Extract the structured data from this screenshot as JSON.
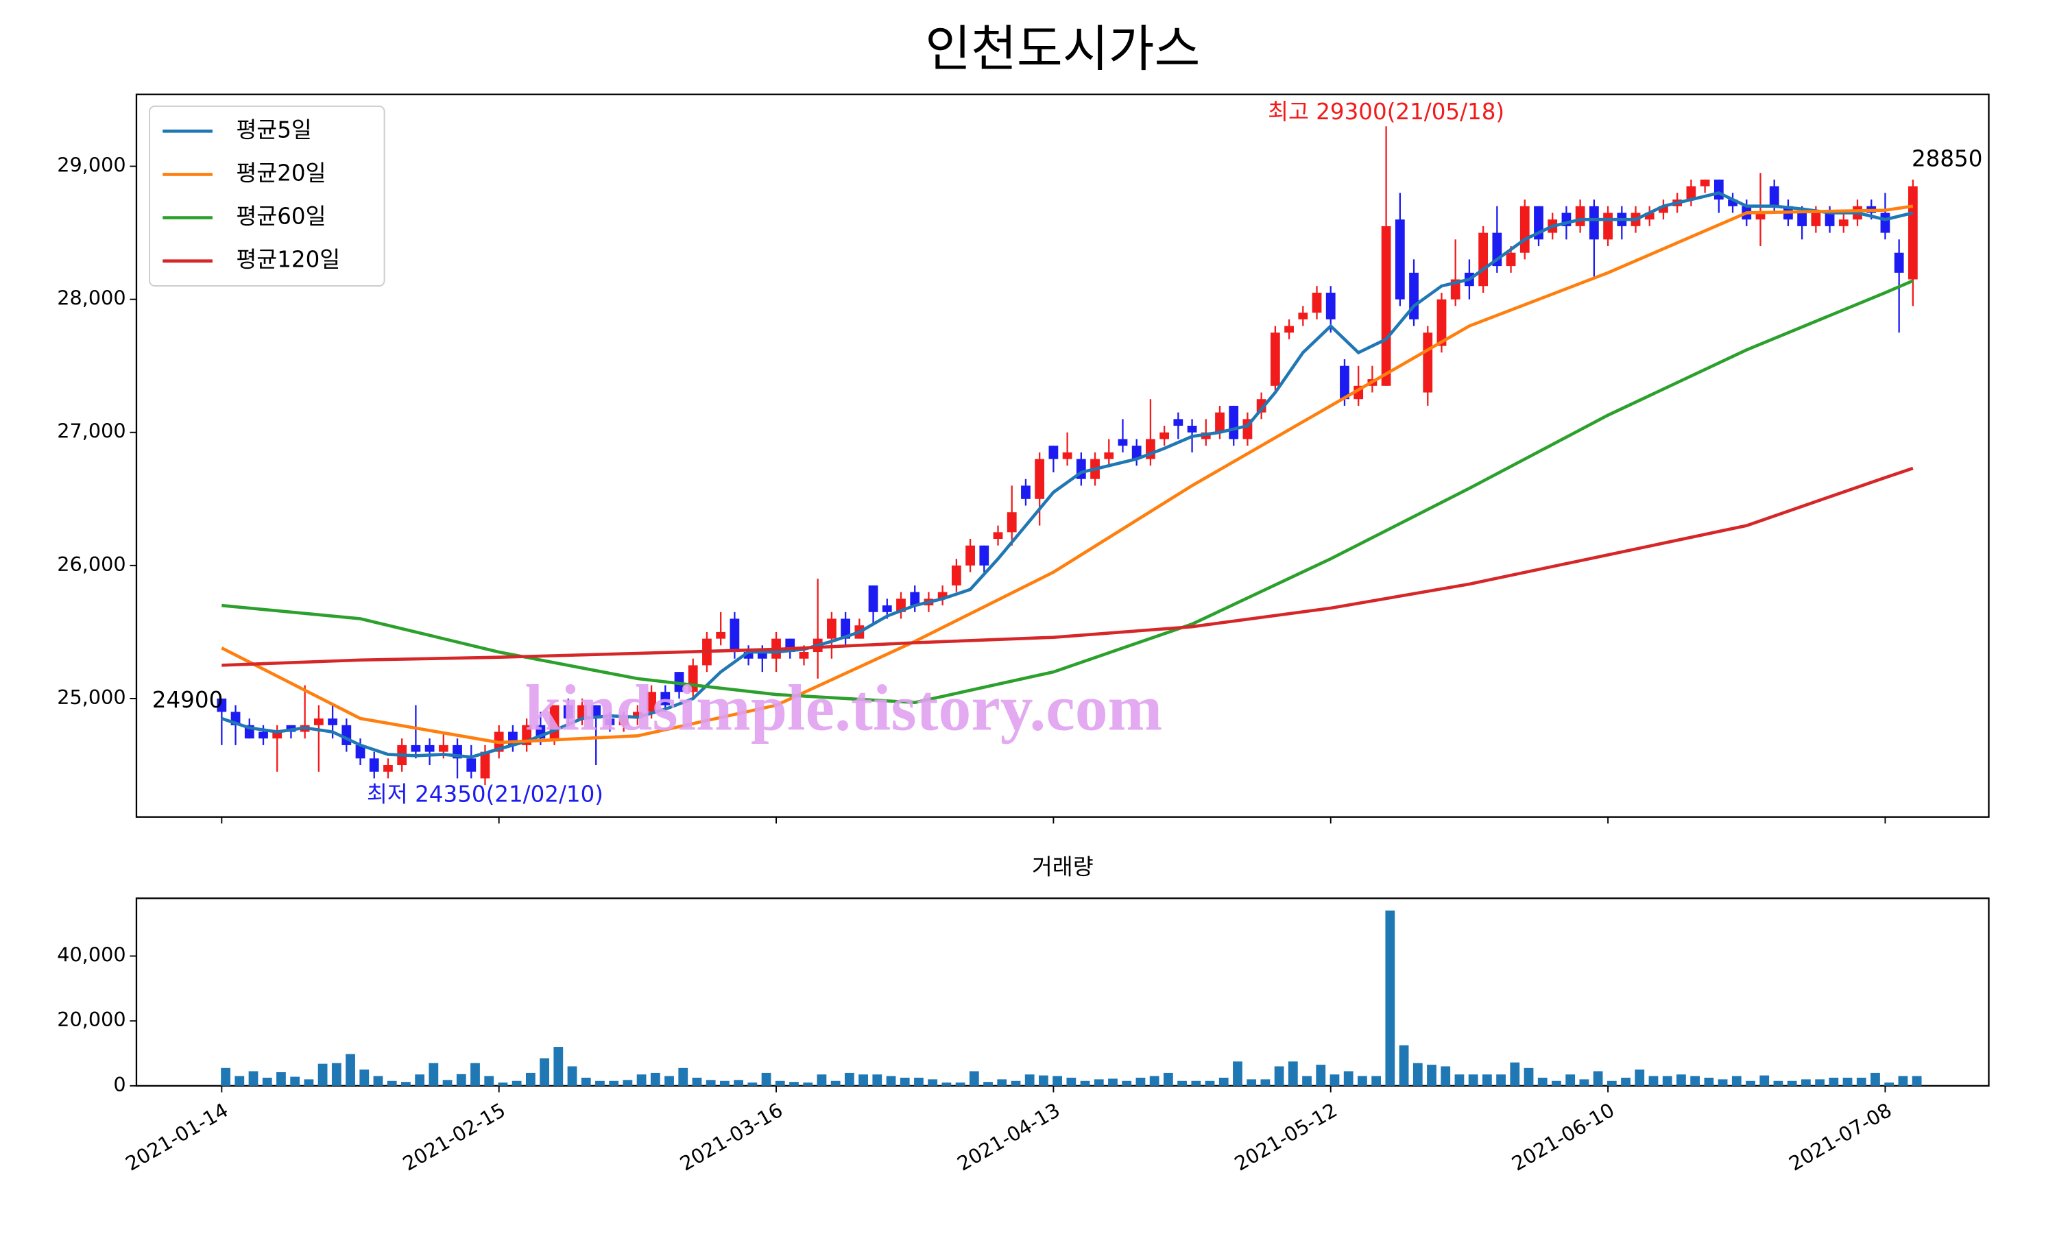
{
  "chart_data": [
    {
      "type": "candlestick",
      "title": "인천도시가스",
      "up_color": "#f21b1b",
      "down_color": "#1b1bf2",
      "legend": "upper left",
      "ylim": [
        24110,
        29540
      ],
      "yticks": [
        {
          "value": 25000,
          "label": "25,000"
        },
        {
          "value": 26000,
          "label": "26,000"
        },
        {
          "value": 27000,
          "label": "27,000"
        },
        {
          "value": 28000,
          "label": "28,000"
        },
        {
          "value": 29000,
          "label": "29,000"
        }
      ],
      "max_label": "최고 29300(21/05/18)",
      "min_label": "최저 24350(21/02/10)",
      "first_label": "24900",
      "last_label": "28850",
      "watermark": "kindsimple.tistory.com",
      "open": [
        25000,
        24900,
        24800,
        24750,
        24700,
        24800,
        24750,
        24800,
        24850,
        24800,
        24650,
        24550,
        24450,
        24500,
        24650,
        24650,
        24600,
        24650,
        24550,
        24400,
        24600,
        24750,
        24650,
        24800,
        24700,
        24950,
        24850,
        24950,
        24850,
        24800,
        24850,
        24900,
        25050,
        25200,
        25050,
        25250,
        25450,
        25600,
        25350,
        25350,
        25300,
        25450,
        25300,
        25350,
        25450,
        25600,
        25450,
        25850,
        25700,
        25650,
        25800,
        25700,
        25750,
        25850,
        26000,
        26150,
        26200,
        26250,
        26600,
        26500,
        26900,
        26800,
        26800,
        26650,
        26800,
        26950,
        26900,
        26800,
        26950,
        27100,
        27050,
        26950,
        27000,
        27200,
        26950,
        27150,
        27350,
        27750,
        27850,
        27900,
        28050,
        27500,
        27250,
        27350,
        27350,
        28600,
        28200,
        27300,
        27650,
        28000,
        28200,
        28100,
        28500,
        28250,
        28350,
        28700,
        28500,
        28650,
        28550,
        28700,
        28450,
        28650,
        28550,
        28600,
        28650,
        28700,
        28750,
        28850,
        28900,
        28750,
        28700,
        28600,
        28850,
        28700,
        28650,
        28550,
        28650,
        28550,
        28600,
        28700,
        28650,
        28350,
        28150
      ],
      "high": [
        25000,
        24950,
        24850,
        24800,
        24800,
        24800,
        25100,
        24950,
        24950,
        24850,
        24700,
        24600,
        24550,
        24700,
        24950,
        24700,
        24750,
        24700,
        24650,
        24650,
        24800,
        24800,
        24850,
        24900,
        24950,
        25000,
        25000,
        24950,
        24900,
        24900,
        24950,
        25100,
        25100,
        25200,
        25300,
        25500,
        25650,
        25650,
        25400,
        25400,
        25500,
        25450,
        25400,
        25900,
        25650,
        25650,
        25600,
        25850,
        25750,
        25800,
        25850,
        25800,
        25850,
        26050,
        26200,
        26150,
        26300,
        26600,
        26650,
        26850,
        26900,
        27000,
        26850,
        26850,
        26950,
        27100,
        26950,
        27250,
        27050,
        27150,
        27100,
        27100,
        27200,
        27200,
        27150,
        27300,
        27800,
        27850,
        27950,
        28100,
        28100,
        27550,
        27500,
        27500,
        29300,
        28800,
        28300,
        27800,
        28050,
        28450,
        28300,
        28550,
        28700,
        28400,
        28750,
        28700,
        28650,
        28700,
        28750,
        28750,
        28700,
        28700,
        28700,
        28700,
        28750,
        28800,
        28900,
        28900,
        28900,
        28800,
        28750,
        28950,
        28900,
        28750,
        28700,
        28700,
        28700,
        28650,
        28750,
        28750,
        28800,
        28450,
        28900
      ],
      "low": [
        24650,
        24650,
        24700,
        24650,
        24450,
        24700,
        24700,
        24450,
        24700,
        24600,
        24500,
        24400,
        24400,
        24450,
        24550,
        24500,
        24550,
        24400,
        24400,
        24350,
        24550,
        24600,
        24600,
        24650,
        24650,
        24800,
        24800,
        24500,
        24750,
        24750,
        24800,
        24850,
        24900,
        25000,
        25000,
        25200,
        25400,
        25300,
        25250,
        25200,
        25200,
        25300,
        25250,
        25150,
        25300,
        25400,
        25450,
        25550,
        25600,
        25600,
        25650,
        25650,
        25700,
        25800,
        25950,
        25950,
        26150,
        26150,
        26450,
        26300,
        26700,
        26750,
        26600,
        26600,
        26750,
        26850,
        26750,
        26750,
        26900,
        26950,
        26850,
        26900,
        26950,
        26900,
        26900,
        27100,
        27300,
        27700,
        27800,
        27850,
        27750,
        27200,
        27200,
        27300,
        27350,
        27950,
        27800,
        27200,
        27600,
        27950,
        28000,
        28050,
        28200,
        28200,
        28300,
        28400,
        28450,
        28450,
        28500,
        28150,
        28400,
        28450,
        28500,
        28550,
        28600,
        28650,
        28700,
        28800,
        28650,
        28650,
        28550,
        28400,
        28650,
        28550,
        28450,
        28500,
        28500,
        28500,
        28550,
        28600,
        28450,
        27750,
        27950
      ],
      "close": [
        24900,
        24800,
        24700,
        24700,
        24750,
        24750,
        24800,
        24850,
        24800,
        24650,
        24550,
        24450,
        24500,
        24650,
        24600,
        24600,
        24650,
        24550,
        24450,
        24600,
        24750,
        24650,
        24800,
        24700,
        24950,
        24850,
        24950,
        24850,
        24800,
        24850,
        24900,
        25050,
        24950,
        25050,
        25250,
        25450,
        25500,
        25350,
        25300,
        25300,
        25450,
        25350,
        25350,
        25450,
        25600,
        25450,
        25550,
        25650,
        25650,
        25750,
        25700,
        25750,
        25800,
        26000,
        26150,
        26000,
        26250,
        26400,
        26500,
        26800,
        26800,
        26850,
        26650,
        26800,
        26850,
        26900,
        26800,
        26950,
        27000,
        27050,
        27000,
        27000,
        27150,
        26950,
        27100,
        27250,
        27750,
        27800,
        27900,
        28050,
        27850,
        27250,
        27350,
        27400,
        28550,
        28000,
        27850,
        27750,
        28000,
        28150,
        28100,
        28500,
        28250,
        28350,
        28700,
        28450,
        28600,
        28550,
        28700,
        28450,
        28650,
        28550,
        28650,
        28650,
        28700,
        28750,
        28850,
        28900,
        28750,
        28700,
        28600,
        28650,
        28700,
        28600,
        28550,
        28650,
        28550,
        28600,
        28700,
        28650,
        28500,
        28200,
        28850
      ],
      "series": [
        {
          "name": "평균5일",
          "color": "#1f77b4",
          "x": [
            0,
            2,
            4,
            6,
            8,
            10,
            12,
            14,
            16,
            18,
            20,
            22,
            24,
            26,
            28,
            30,
            32,
            34,
            36,
            38,
            40,
            42,
            44,
            46,
            48,
            50,
            52,
            54,
            56,
            58,
            60,
            62,
            64,
            66,
            68,
            70,
            72,
            74,
            76,
            78,
            80,
            82,
            84,
            86,
            88,
            90,
            92,
            94,
            96,
            98,
            100,
            102,
            104,
            106,
            108,
            110,
            112,
            114,
            116,
            118,
            120,
            122
          ],
          "values": [
            24850,
            24780,
            24750,
            24780,
            24750,
            24650,
            24580,
            24570,
            24580,
            24560,
            24620,
            24680,
            24760,
            24850,
            24870,
            24860,
            24920,
            25000,
            25200,
            25350,
            25350,
            25370,
            25430,
            25500,
            25620,
            25700,
            25750,
            25820,
            26050,
            26300,
            26550,
            26700,
            26750,
            26800,
            26880,
            26970,
            27000,
            27050,
            27300,
            27600,
            27800,
            27600,
            27700,
            27950,
            28100,
            28150,
            28300,
            28450,
            28550,
            28600,
            28600,
            28600,
            28700,
            28750,
            28800,
            28700,
            28700,
            28680,
            28650,
            28650,
            28600,
            28650
          ]
        },
        {
          "name": "평균20일",
          "color": "#ff7f0e",
          "x": [
            0,
            10,
            20,
            30,
            40,
            50,
            60,
            70,
            80,
            90,
            100,
            110,
            120,
            122
          ],
          "values": [
            25380,
            24850,
            24670,
            24720,
            24950,
            25430,
            25950,
            26600,
            27200,
            27800,
            28200,
            28650,
            28670,
            28700
          ]
        },
        {
          "name": "평균60일",
          "color": "#2ca02c",
          "x": [
            0,
            10,
            20,
            30,
            40,
            50,
            60,
            70,
            80,
            90,
            100,
            110,
            120,
            122
          ],
          "values": [
            25700,
            25600,
            25350,
            25150,
            25030,
            24970,
            25200,
            25560,
            26050,
            26580,
            27130,
            27620,
            28050,
            28140
          ]
        },
        {
          "name": "평균120일",
          "color": "#d62728",
          "x": [
            0,
            10,
            20,
            30,
            40,
            50,
            60,
            70,
            80,
            90,
            100,
            110,
            120,
            122
          ],
          "values": [
            25250,
            25290,
            25310,
            25340,
            25370,
            25420,
            25460,
            25540,
            25680,
            25860,
            26080,
            26300,
            26660,
            26730
          ]
        }
      ]
    },
    {
      "type": "bar",
      "title": "거래량",
      "color": "#1f77b4",
      "ylim": [
        0,
        57800
      ],
      "yticks": [
        0,
        {
          "value": 20000,
          "label": "20,000"
        },
        {
          "value": 40000,
          "label": "40,000"
        }
      ],
      "categories": [
        "2021-01-14",
        null,
        null,
        null,
        null,
        null,
        null,
        null,
        null,
        null,
        null,
        null,
        null,
        null,
        null,
        null,
        null,
        null,
        null,
        null,
        "2021-02-15",
        null,
        null,
        null,
        null,
        null,
        null,
        null,
        null,
        null,
        null,
        null,
        null,
        null,
        null,
        null,
        null,
        null,
        null,
        null,
        "2021-03-16",
        null,
        null,
        null,
        null,
        null,
        null,
        null,
        null,
        null,
        null,
        null,
        null,
        null,
        null,
        null,
        null,
        null,
        null,
        null,
        "2021-04-13",
        null,
        null,
        null,
        null,
        null,
        null,
        null,
        null,
        null,
        null,
        null,
        null,
        null,
        null,
        null,
        null,
        null,
        null,
        null,
        "2021-05-12",
        null,
        null,
        null,
        null,
        null,
        null,
        null,
        null,
        null,
        null,
        null,
        null,
        null,
        null,
        null,
        null,
        null,
        null,
        null,
        "2021-06-10",
        null,
        null,
        null,
        null,
        null,
        null,
        null,
        null,
        null,
        null,
        null,
        null,
        null,
        null,
        null,
        null,
        null,
        null,
        null,
        "2021-07-08",
        null,
        null
      ],
      "values": [
        5500,
        3000,
        4500,
        2500,
        4200,
        2800,
        2000,
        6800,
        7000,
        9800,
        5000,
        3000,
        1500,
        1200,
        3500,
        7000,
        1800,
        3600,
        7000,
        3000,
        1000,
        1500,
        4000,
        8500,
        12000,
        6000,
        2500,
        1500,
        1500,
        1800,
        3500,
        4000,
        3000,
        5500,
        2500,
        1800,
        1500,
        1800,
        1000,
        4000,
        1500,
        1200,
        1000,
        3500,
        1500,
        4000,
        3500,
        3500,
        3000,
        2500,
        2500,
        2000,
        1000,
        1000,
        4500,
        1200,
        2000,
        1500,
        3500,
        3200,
        3000,
        2500,
        1500,
        2000,
        2200,
        1500,
        2500,
        3000,
        4000,
        1500,
        1500,
        1500,
        2500,
        7500,
        2000,
        2000,
        6000,
        7500,
        3000,
        6500,
        3500,
        4500,
        3000,
        3000,
        54000,
        12500,
        7000,
        6500,
        6000,
        3500,
        3500,
        3500,
        3500,
        7200,
        5500,
        2500,
        1500,
        3500,
        2000,
        4500,
        1500,
        2500,
        5000,
        3000,
        3000,
        3500,
        3000,
        2500,
        2000,
        3000,
        1500,
        3200,
        1500,
        1500,
        2000,
        2000,
        2500,
        2500,
        2500,
        4000,
        1000,
        3000,
        3000
      ]
    }
  ]
}
